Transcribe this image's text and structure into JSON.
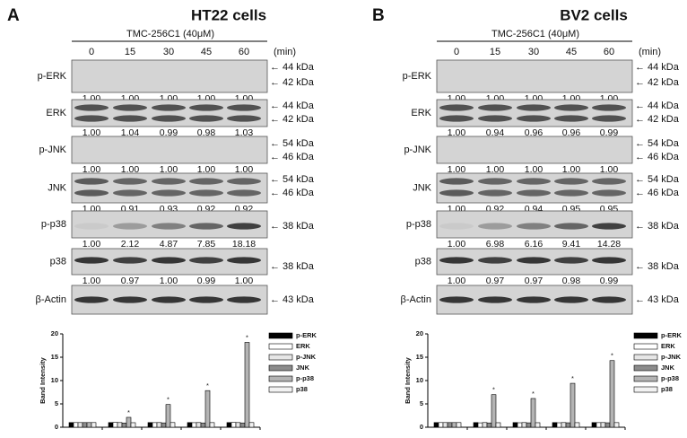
{
  "panels": [
    {
      "letter": "A",
      "title": "HT22 cells",
      "treatment": "TMC-256C1 (40μM)",
      "time_unit": "(min)",
      "times": [
        "0",
        "15",
        "30",
        "45",
        "60"
      ],
      "blots": [
        {
          "label": "p-ERK",
          "markers": [
            "44 kDa",
            "42 kDa"
          ],
          "quant": [
            "1.00",
            "1.00",
            "1.00",
            "1.00",
            "1.00"
          ]
        },
        {
          "label": "ERK",
          "markers": [
            "44 kDa",
            "42 kDa"
          ],
          "quant": [
            "1.00",
            "1.04",
            "0.99",
            "0.98",
            "1.03"
          ]
        },
        {
          "label": "p-JNK",
          "markers": [
            "54 kDa",
            "46 kDa"
          ],
          "quant": [
            "1.00",
            "1.00",
            "1.00",
            "1.00",
            "1.00"
          ]
        },
        {
          "label": "JNK",
          "markers": [
            "54 kDa",
            "46 kDa"
          ],
          "quant": [
            "1.00",
            "0.91",
            "0.93",
            "0.92",
            "0.92"
          ]
        },
        {
          "label": "p-p38",
          "markers": [
            "38 kDa"
          ],
          "quant": [
            "1.00",
            "2.12",
            "4.87",
            "7.85",
            "18.18"
          ]
        },
        {
          "label": "p38",
          "markers": [
            "38 kDa"
          ],
          "quant": [
            "1.00",
            "0.97",
            "1.00",
            "0.99",
            "1.00"
          ]
        },
        {
          "label": "β-Actin",
          "markers": [
            "43 kDa"
          ]
        }
      ],
      "chart": {
        "type": "bar",
        "ylabel": "Band Intensity",
        "categories": [
          null,
          null,
          null,
          null,
          null
        ],
        "ylim": [
          0,
          20
        ],
        "yticks": [
          0,
          5,
          10,
          15,
          20
        ],
        "series": [
          {
            "name": "p-ERK",
            "color": "#000000",
            "values": [
              1,
              1,
              1,
              1,
              1
            ]
          },
          {
            "name": "ERK",
            "color": "#ffffff",
            "values": [
              1,
              1.04,
              0.99,
              0.98,
              1.03
            ]
          },
          {
            "name": "p-JNK",
            "color": "#e6e6e6",
            "values": [
              1,
              1,
              1,
              1,
              1
            ]
          },
          {
            "name": "JNK",
            "color": "#8c8c8c",
            "values": [
              1,
              0.91,
              0.93,
              0.92,
              0.92
            ]
          },
          {
            "name": "p-p38",
            "color": "#b4b4b4",
            "values": [
              1,
              2.12,
              4.87,
              7.85,
              18.18
            ]
          },
          {
            "name": "p38",
            "color": "#f2f2f2",
            "values": [
              1,
              0.97,
              1,
              0.99,
              1
            ]
          }
        ],
        "annotations": [
          {
            "text": "*",
            "category": 1,
            "series": 4
          },
          {
            "text": "*",
            "category": 2,
            "series": 4
          },
          {
            "text": "*",
            "category": 3,
            "series": 4
          },
          {
            "text": "*",
            "category": 4,
            "series": 4
          }
        ]
      }
    },
    {
      "letter": "B",
      "title": "BV2 cells",
      "treatment": "TMC-256C1 (40μM)",
      "time_unit": "(min)",
      "times": [
        "0",
        "15",
        "30",
        "45",
        "60"
      ],
      "blots": [
        {
          "label": "p-ERK",
          "markers": [
            "44 kDa",
            "42 kDa"
          ],
          "quant": [
            "1.00",
            "1.00",
            "1.00",
            "1.00",
            "1.00"
          ]
        },
        {
          "label": "ERK",
          "markers": [
            "44 kDa",
            "42 kDa"
          ],
          "quant": [
            "1.00",
            "0.94",
            "0.96",
            "0.96",
            "0.99"
          ]
        },
        {
          "label": "p-JNK",
          "markers": [
            "54 kDa",
            "46 kDa"
          ],
          "quant": [
            "1.00",
            "1.00",
            "1.00",
            "1.00",
            "1.00"
          ]
        },
        {
          "label": "JNK",
          "markers": [
            "54 kDa",
            "46 kDa"
          ],
          "quant": [
            "1.00",
            "0.92",
            "0.94",
            "0.95",
            "0.95"
          ]
        },
        {
          "label": "p-p38",
          "markers": [
            "38 kDa"
          ],
          "quant": [
            "1.00",
            "6.98",
            "6.16",
            "9.41",
            "14.28"
          ]
        },
        {
          "label": "p38",
          "markers": [
            "38 kDa"
          ],
          "quant": [
            "1.00",
            "0.97",
            "0.97",
            "0.98",
            "0.99"
          ]
        },
        {
          "label": "β-Actin",
          "markers": [
            "43 kDa"
          ]
        }
      ],
      "chart": {
        "type": "bar",
        "ylabel": "Band Intensity",
        "categories": [
          null,
          null,
          null,
          null,
          null
        ],
        "ylim": [
          0,
          20
        ],
        "yticks": [
          0,
          5,
          10,
          15,
          20
        ],
        "series": [
          {
            "name": "p-ERK",
            "color": "#000000",
            "values": [
              1,
              1,
              1,
              1,
              1
            ]
          },
          {
            "name": "ERK",
            "color": "#ffffff",
            "values": [
              1,
              0.94,
              0.96,
              0.96,
              0.99
            ]
          },
          {
            "name": "p-JNK",
            "color": "#e6e6e6",
            "values": [
              1,
              1,
              1,
              1,
              1
            ]
          },
          {
            "name": "JNK",
            "color": "#8c8c8c",
            "values": [
              1,
              0.92,
              0.94,
              0.95,
              0.95
            ]
          },
          {
            "name": "p-p38",
            "color": "#b4b4b4",
            "values": [
              1,
              6.98,
              6.16,
              9.41,
              14.28
            ]
          },
          {
            "name": "p38",
            "color": "#f2f2f2",
            "values": [
              1,
              0.97,
              0.97,
              0.98,
              0.99
            ]
          }
        ],
        "annotations": [
          {
            "text": "*",
            "category": 1,
            "series": 4
          },
          {
            "text": "*",
            "category": 2,
            "series": 4
          },
          {
            "text": "*",
            "category": 3,
            "series": 4
          },
          {
            "text": "*",
            "category": 4,
            "series": 4
          }
        ]
      }
    }
  ]
}
